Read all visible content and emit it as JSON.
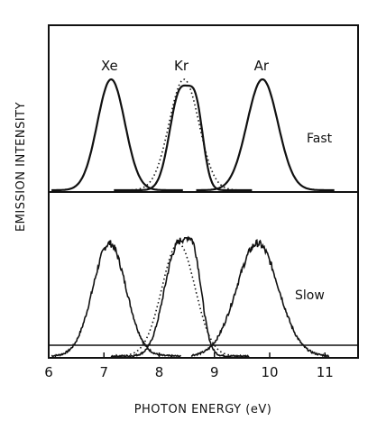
{
  "chart_data": {
    "type": "line",
    "xlabel": "PHOTON ENERGY (eV)",
    "ylabel": "EMISSION INTENSITY",
    "xlim": [
      6,
      11.6
    ],
    "x_ticks": [
      "6",
      "7",
      "8",
      "9",
      "10",
      "11"
    ],
    "gas_labels": [
      {
        "text": "Xe",
        "x": 7.1
      },
      {
        "text": "Kr",
        "x": 8.4
      },
      {
        "text": "Ar",
        "x": 9.85
      }
    ],
    "panels": [
      {
        "label": "Fast",
        "series": [
          {
            "gas": "Xe",
            "peaks": [
              {
                "center": 7.13,
                "sigma": 0.25,
                "height": 1.0
              }
            ]
          },
          {
            "gas": "Kr",
            "peaks": [
              {
                "center": 8.38,
                "sigma": 0.19,
                "height": 0.88
              },
              {
                "center": 8.68,
                "sigma": 0.13,
                "height": 0.58
              }
            ]
          },
          {
            "gas": "Ar",
            "peaks": [
              {
                "center": 9.87,
                "sigma": 0.28,
                "height": 1.0
              }
            ]
          }
        ],
        "dotted": [
          {
            "gas": "Kr",
            "center": 8.45,
            "sigma": 0.27,
            "height": 1.0
          }
        ]
      },
      {
        "label": "Slow",
        "series": [
          {
            "gas": "Xe",
            "peaks": [
              {
                "center": 7.1,
                "sigma": 0.3,
                "height": 1.0
              }
            ]
          },
          {
            "gas": "Kr",
            "peaks": [
              {
                "center": 8.33,
                "sigma": 0.24,
                "height": 0.96
              },
              {
                "center": 8.65,
                "sigma": 0.14,
                "height": 0.55
              }
            ]
          },
          {
            "gas": "Ar",
            "peaks": [
              {
                "center": 9.78,
                "sigma": 0.38,
                "height": 1.0
              }
            ]
          }
        ],
        "dotted": [
          {
            "gas": "Kr",
            "center": 8.35,
            "sigma": 0.3,
            "height": 1.0
          }
        ]
      }
    ]
  }
}
